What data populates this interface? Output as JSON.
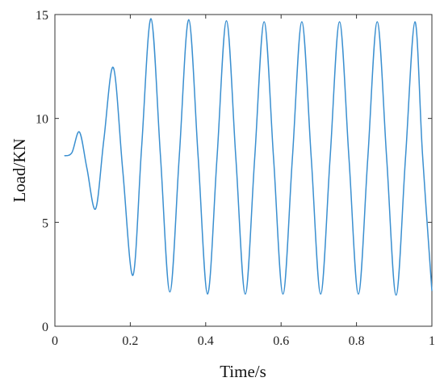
{
  "chart_data": {
    "type": "line",
    "xlabel": "Time/s",
    "ylabel": "Load/KN",
    "xlim": [
      0,
      1
    ],
    "ylim": [
      0,
      15
    ],
    "xticks": [
      0,
      0.2,
      0.4,
      0.6,
      0.8,
      1
    ],
    "xtick_labels": [
      "0",
      "0.2",
      "0.4",
      "0.6",
      "0.8",
      "1"
    ],
    "yticks": [
      0,
      5,
      10,
      15
    ],
    "ytick_labels": [
      "0",
      "5",
      "10",
      "15"
    ],
    "grid": false,
    "line_color": "#3a8fd0",
    "series": [
      {
        "x": [
          0.025,
          0.045,
          0.065,
          0.085,
          0.108,
          0.13,
          0.155,
          0.18,
          0.207,
          0.23,
          0.255,
          0.28,
          0.305,
          0.33,
          0.355,
          0.38,
          0.405,
          0.43,
          0.455,
          0.48,
          0.505,
          0.53,
          0.555,
          0.58,
          0.605,
          0.63,
          0.655,
          0.68,
          0.705,
          0.73,
          0.755,
          0.78,
          0.805,
          0.83,
          0.855,
          0.88,
          0.905,
          0.93,
          0.955,
          0.975,
          1.0
        ],
        "y": [
          8.2,
          8.35,
          9.35,
          7.6,
          5.65,
          9.0,
          12.45,
          7.5,
          2.45,
          8.6,
          14.8,
          8.2,
          1.65,
          8.2,
          14.75,
          8.15,
          1.55,
          8.1,
          14.7,
          8.1,
          1.55,
          8.1,
          14.65,
          8.1,
          1.55,
          8.1,
          14.65,
          8.1,
          1.55,
          8.1,
          14.65,
          8.1,
          1.55,
          8.1,
          14.65,
          8.1,
          1.5,
          8.1,
          14.65,
          8.3,
          1.7
        ]
      }
    ]
  }
}
